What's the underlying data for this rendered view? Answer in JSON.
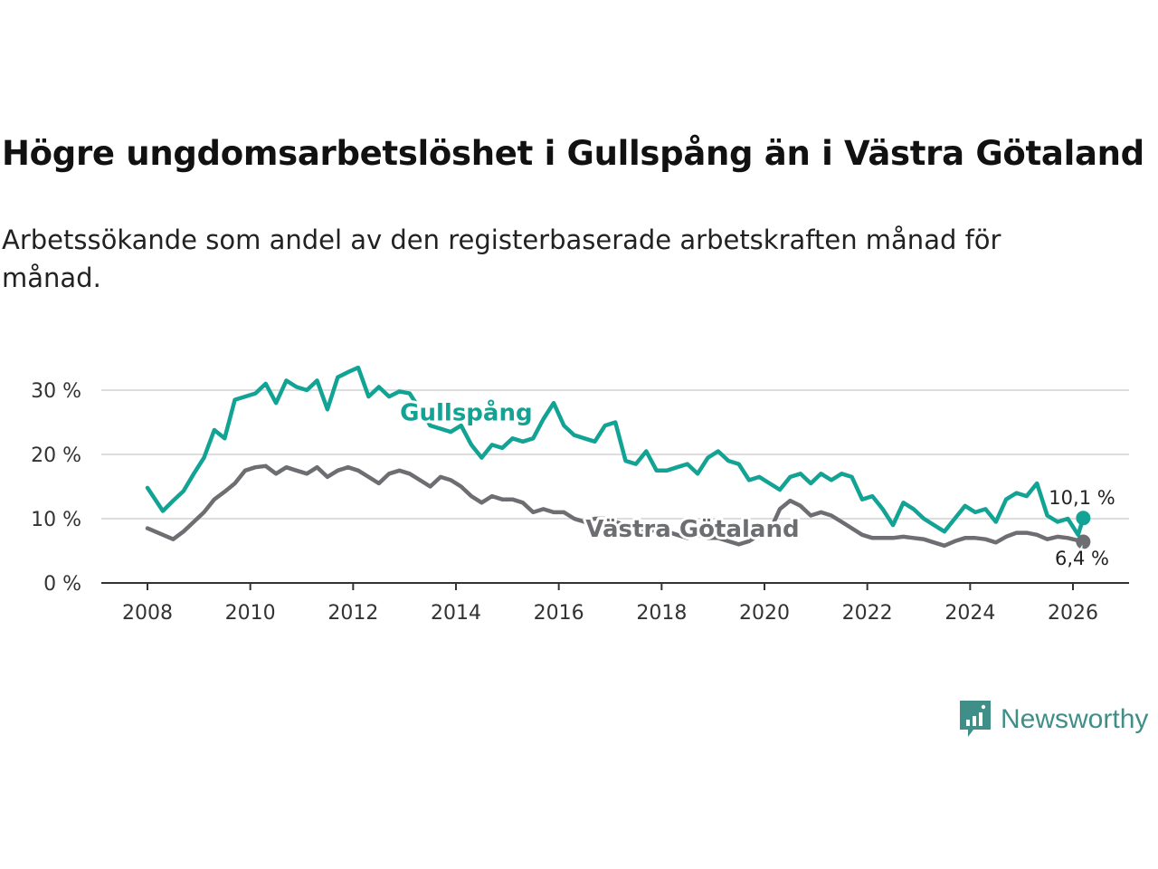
{
  "title": "Högre ungdomsarbetslöshet i Gullspång än i Västra Götaland",
  "subtitle": "Arbetssökande som andel av den registerbaserade arbetskraften månad för månad.",
  "brand": "Newsworthy",
  "colors": {
    "gullspang": "#12a394",
    "vg": "#6d6e71",
    "grid": "#dddddd",
    "axis": "#333333"
  },
  "chart_data": {
    "type": "line",
    "title": "Högre ungdomsarbetslöshet i Gullspång än i Västra Götaland",
    "xlabel": "",
    "ylabel": "",
    "ylim": [
      0,
      35
    ],
    "xlim": [
      2007.2,
      2026.7
    ],
    "y_ticks": [
      0,
      10,
      20,
      30
    ],
    "y_tick_labels": [
      "0 %",
      "10 %",
      "20 %",
      "30 %"
    ],
    "x_ticks": [
      2008,
      2010,
      2012,
      2014,
      2016,
      2018,
      2020,
      2022,
      2024,
      2026
    ],
    "x_tick_labels": [
      "2008",
      "2010",
      "2012",
      "2014",
      "2016",
      "2018",
      "2020",
      "2022",
      "2024",
      "2026"
    ],
    "series": [
      {
        "name": "Gullspång",
        "label": "Gullspång",
        "end_label": "10,1 %",
        "points": [
          [
            2008.0,
            14.8
          ],
          [
            2008.3,
            11.2
          ],
          [
            2008.5,
            12.8
          ],
          [
            2008.7,
            14.3
          ],
          [
            2008.9,
            17.0
          ],
          [
            2009.1,
            19.5
          ],
          [
            2009.3,
            23.8
          ],
          [
            2009.5,
            22.5
          ],
          [
            2009.7,
            28.5
          ],
          [
            2009.9,
            29.0
          ],
          [
            2010.1,
            29.5
          ],
          [
            2010.3,
            31.0
          ],
          [
            2010.5,
            28.0
          ],
          [
            2010.7,
            31.5
          ],
          [
            2010.9,
            30.5
          ],
          [
            2011.1,
            30.0
          ],
          [
            2011.3,
            31.5
          ],
          [
            2011.5,
            27.0
          ],
          [
            2011.7,
            32.0
          ],
          [
            2011.9,
            32.8
          ],
          [
            2012.1,
            33.5
          ],
          [
            2012.3,
            29.0
          ],
          [
            2012.5,
            30.5
          ],
          [
            2012.7,
            29.0
          ],
          [
            2012.9,
            29.8
          ],
          [
            2013.1,
            29.5
          ],
          [
            2013.3,
            27.0
          ],
          [
            2013.5,
            24.5
          ],
          [
            2013.7,
            24.0
          ],
          [
            2013.9,
            23.5
          ],
          [
            2014.1,
            24.5
          ],
          [
            2014.3,
            21.5
          ],
          [
            2014.5,
            19.5
          ],
          [
            2014.7,
            21.5
          ],
          [
            2014.9,
            21.0
          ],
          [
            2015.1,
            22.5
          ],
          [
            2015.3,
            22.0
          ],
          [
            2015.5,
            22.5
          ],
          [
            2015.7,
            25.5
          ],
          [
            2015.9,
            28.0
          ],
          [
            2016.1,
            24.5
          ],
          [
            2016.3,
            23.0
          ],
          [
            2016.5,
            22.5
          ],
          [
            2016.7,
            22.0
          ],
          [
            2016.9,
            24.5
          ],
          [
            2017.1,
            25.0
          ],
          [
            2017.3,
            19.0
          ],
          [
            2017.5,
            18.5
          ],
          [
            2017.7,
            20.5
          ],
          [
            2017.9,
            17.5
          ],
          [
            2018.1,
            17.5
          ],
          [
            2018.3,
            18.0
          ],
          [
            2018.5,
            18.5
          ],
          [
            2018.7,
            17.0
          ],
          [
            2018.9,
            19.5
          ],
          [
            2019.1,
            20.5
          ],
          [
            2019.3,
            19.0
          ],
          [
            2019.5,
            18.5
          ],
          [
            2019.7,
            16.0
          ],
          [
            2019.9,
            16.5
          ],
          [
            2020.1,
            15.5
          ],
          [
            2020.3,
            14.5
          ],
          [
            2020.5,
            16.5
          ],
          [
            2020.7,
            17.0
          ],
          [
            2020.9,
            15.5
          ],
          [
            2021.1,
            17.0
          ],
          [
            2021.3,
            16.0
          ],
          [
            2021.5,
            17.0
          ],
          [
            2021.7,
            16.5
          ],
          [
            2021.9,
            13.0
          ],
          [
            2022.1,
            13.5
          ],
          [
            2022.3,
            11.5
          ],
          [
            2022.5,
            9.0
          ],
          [
            2022.7,
            12.5
          ],
          [
            2022.9,
            11.5
          ],
          [
            2023.1,
            10.0
          ],
          [
            2023.3,
            9.0
          ],
          [
            2023.5,
            8.0
          ],
          [
            2023.7,
            10.0
          ],
          [
            2023.9,
            12.0
          ],
          [
            2024.1,
            11.0
          ],
          [
            2024.3,
            11.5
          ],
          [
            2024.5,
            9.5
          ],
          [
            2024.7,
            13.0
          ],
          [
            2024.9,
            14.0
          ],
          [
            2025.1,
            13.5
          ],
          [
            2025.3,
            15.5
          ],
          [
            2025.5,
            10.5
          ],
          [
            2025.7,
            9.5
          ],
          [
            2025.9,
            10.0
          ],
          [
            2026.1,
            7.5
          ],
          [
            2026.2,
            10.1
          ]
        ]
      },
      {
        "name": "Västra Götaland",
        "label": "Västra Götaland",
        "end_label": "6,4 %",
        "points": [
          [
            2008.0,
            8.5
          ],
          [
            2008.3,
            7.5
          ],
          [
            2008.5,
            6.8
          ],
          [
            2008.7,
            8.0
          ],
          [
            2008.9,
            9.5
          ],
          [
            2009.1,
            11.0
          ],
          [
            2009.3,
            13.0
          ],
          [
            2009.5,
            14.2
          ],
          [
            2009.7,
            15.5
          ],
          [
            2009.9,
            17.5
          ],
          [
            2010.1,
            18.0
          ],
          [
            2010.3,
            18.2
          ],
          [
            2010.5,
            17.0
          ],
          [
            2010.7,
            18.0
          ],
          [
            2010.9,
            17.5
          ],
          [
            2011.1,
            17.0
          ],
          [
            2011.3,
            18.0
          ],
          [
            2011.5,
            16.5
          ],
          [
            2011.7,
            17.5
          ],
          [
            2011.9,
            18.0
          ],
          [
            2012.1,
            17.5
          ],
          [
            2012.3,
            16.5
          ],
          [
            2012.5,
            15.5
          ],
          [
            2012.7,
            17.0
          ],
          [
            2012.9,
            17.5
          ],
          [
            2013.1,
            17.0
          ],
          [
            2013.3,
            16.0
          ],
          [
            2013.5,
            15.0
          ],
          [
            2013.7,
            16.5
          ],
          [
            2013.9,
            16.0
          ],
          [
            2014.1,
            15.0
          ],
          [
            2014.3,
            13.5
          ],
          [
            2014.5,
            12.5
          ],
          [
            2014.7,
            13.5
          ],
          [
            2014.9,
            13.0
          ],
          [
            2015.1,
            13.0
          ],
          [
            2015.3,
            12.5
          ],
          [
            2015.5,
            11.0
          ],
          [
            2015.7,
            11.5
          ],
          [
            2015.9,
            11.0
          ],
          [
            2016.1,
            11.0
          ],
          [
            2016.3,
            10.0
          ],
          [
            2016.5,
            9.5
          ],
          [
            2016.7,
            10.0
          ],
          [
            2016.9,
            10.0
          ],
          [
            2017.1,
            9.5
          ],
          [
            2017.3,
            9.0
          ],
          [
            2017.5,
            8.0
          ],
          [
            2017.7,
            8.5
          ],
          [
            2017.9,
            8.0
          ],
          [
            2018.1,
            8.0
          ],
          [
            2018.3,
            7.5
          ],
          [
            2018.5,
            7.0
          ],
          [
            2018.7,
            7.5
          ],
          [
            2018.9,
            7.0
          ],
          [
            2019.1,
            7.0
          ],
          [
            2019.3,
            6.5
          ],
          [
            2019.5,
            6.0
          ],
          [
            2019.7,
            6.5
          ],
          [
            2019.9,
            7.5
          ],
          [
            2020.1,
            8.0
          ],
          [
            2020.3,
            11.5
          ],
          [
            2020.5,
            12.8
          ],
          [
            2020.7,
            12.0
          ],
          [
            2020.9,
            10.5
          ],
          [
            2021.1,
            11.0
          ],
          [
            2021.3,
            10.5
          ],
          [
            2021.5,
            9.5
          ],
          [
            2021.7,
            8.5
          ],
          [
            2021.9,
            7.5
          ],
          [
            2022.1,
            7.0
          ],
          [
            2022.3,
            7.0
          ],
          [
            2022.5,
            7.0
          ],
          [
            2022.7,
            7.2
          ],
          [
            2022.9,
            7.0
          ],
          [
            2023.1,
            6.8
          ],
          [
            2023.3,
            6.3
          ],
          [
            2023.5,
            5.8
          ],
          [
            2023.7,
            6.5
          ],
          [
            2023.9,
            7.0
          ],
          [
            2024.1,
            7.0
          ],
          [
            2024.3,
            6.8
          ],
          [
            2024.5,
            6.3
          ],
          [
            2024.7,
            7.2
          ],
          [
            2024.9,
            7.8
          ],
          [
            2025.1,
            7.8
          ],
          [
            2025.3,
            7.5
          ],
          [
            2025.5,
            6.8
          ],
          [
            2025.7,
            7.2
          ],
          [
            2025.9,
            7.0
          ],
          [
            2026.1,
            6.6
          ],
          [
            2026.2,
            6.4
          ]
        ]
      }
    ]
  }
}
